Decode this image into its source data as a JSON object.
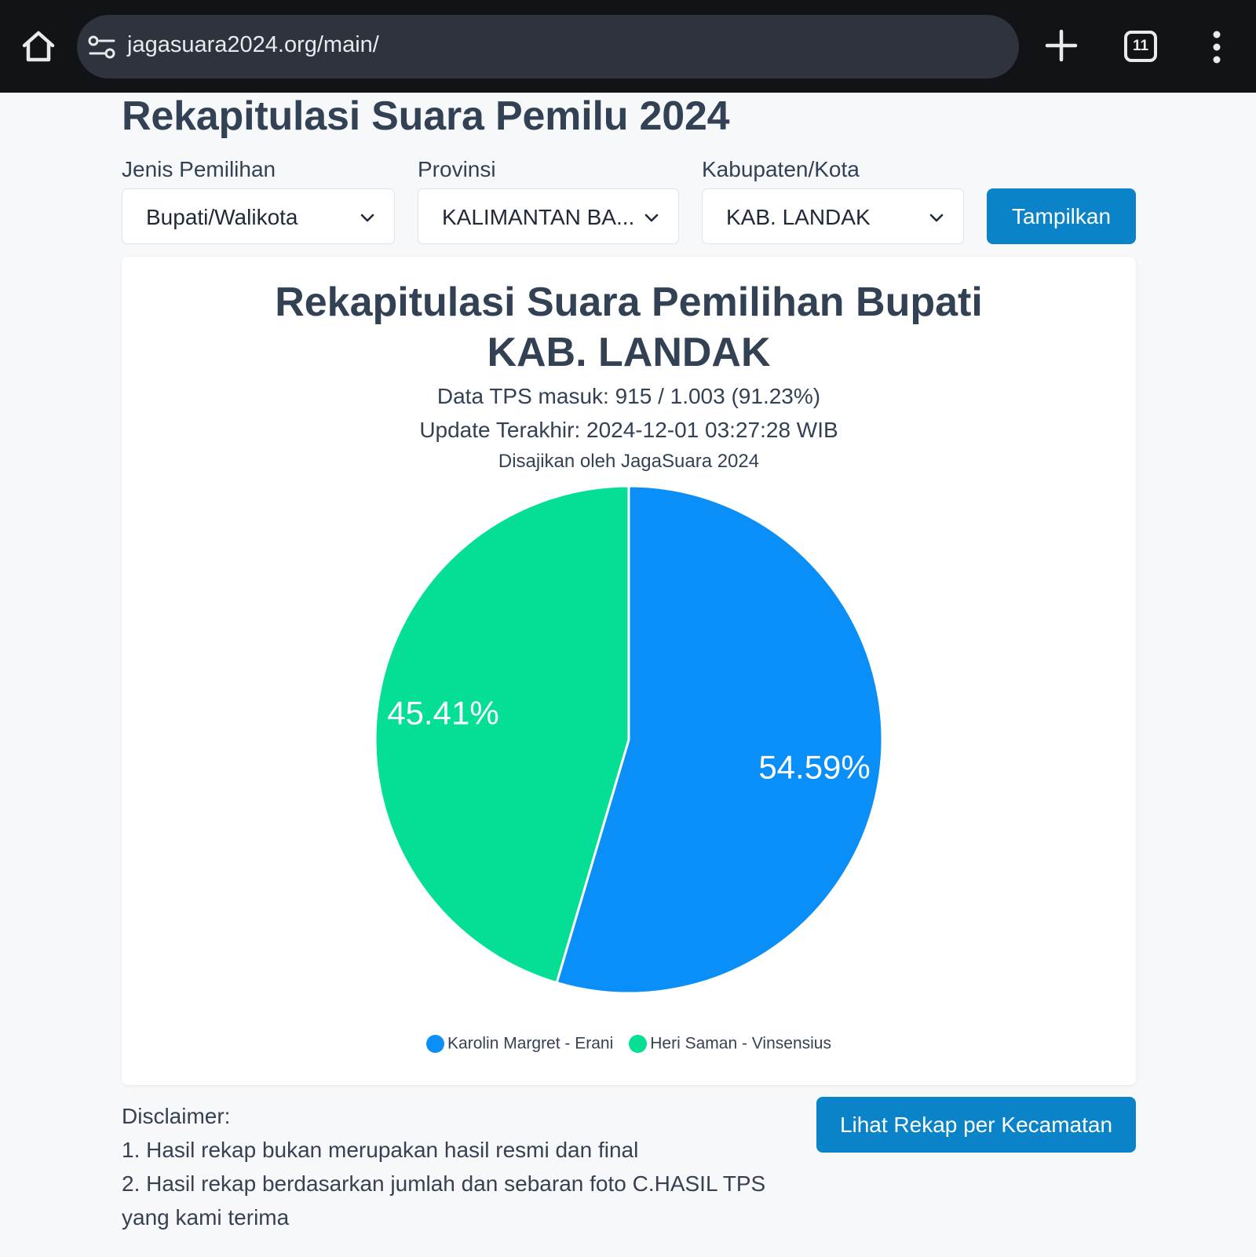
{
  "browser": {
    "url": "jagasuara2024.org/main/",
    "tab_count": "11"
  },
  "page": {
    "title": "Rekapitulasi Suara Pemilu 2024"
  },
  "filters": {
    "jenis": {
      "label": "Jenis Pemilihan",
      "value": "Bupati/Walikota"
    },
    "provinsi": {
      "label": "Provinsi",
      "value": "KALIMANTAN BA..."
    },
    "kabupaten": {
      "label": "Kabupaten/Kota",
      "value": "KAB. LANDAK"
    },
    "show_button": "Tampilkan"
  },
  "card": {
    "title_line1": "Rekapitulasi Suara Pemilihan Bupati",
    "title_line2": "KAB. LANDAK",
    "tps": "Data TPS masuk: 915 / 1.003 (91.23%)",
    "update": "Update Terakhir: 2024-12-01 03:27:28 WIB",
    "source": "Disajikan oleh JagaSuara 2024"
  },
  "chart_data": {
    "type": "pie",
    "categories": [
      "Karolin Margret - Erani",
      "Heri Saman - Vinsensius"
    ],
    "values": [
      54.59,
      45.41
    ],
    "labels": [
      "54.59%",
      "45.41%"
    ],
    "colors": [
      "#0a8ef7",
      "#05df95"
    ],
    "legend_position": "bottom"
  },
  "disclaimer": {
    "heading": "Disclaimer:",
    "line1": "1. Hasil rekap bukan merupakan hasil resmi dan final",
    "line2a": "2. Hasil rekap berdasarkan jumlah dan sebaran foto C.HASIL TPS",
    "line2b": "yang kami terima"
  },
  "rekap_button": "Lihat Rekap per Kecamatan"
}
